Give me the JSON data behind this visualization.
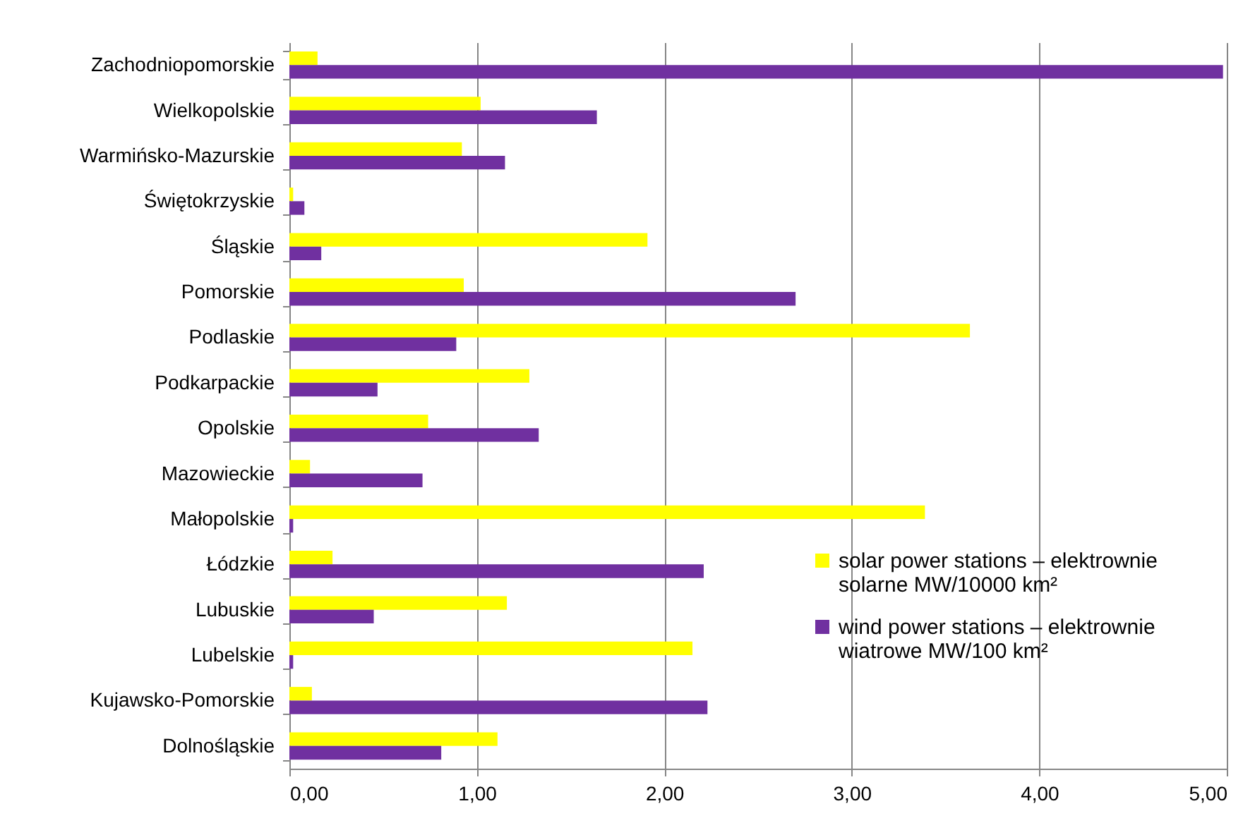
{
  "chart_data": {
    "type": "bar",
    "orientation": "horizontal",
    "categories": [
      "Zachodniopomorskie",
      "Wielkopolskie",
      "Warmińsko-Mazurskie",
      "Świętokrzyskie",
      "Śląskie",
      "Pomorskie",
      "Podlaskie",
      "Podkarpackie",
      "Opolskie",
      "Mazowieckie",
      "Małopolskie",
      "Łódzkie",
      "Lubuskie",
      "Lubelskie",
      "Kujawsko-Pomorskie",
      "Dolnośląskie"
    ],
    "series": [
      {
        "name": "solar power stations – elektrownie solarne MW/10000 km²",
        "color": "#ffff00",
        "values": [
          0.15,
          1.02,
          0.92,
          0.02,
          1.91,
          0.93,
          3.63,
          1.28,
          0.74,
          0.11,
          3.39,
          0.23,
          1.16,
          2.15,
          0.12,
          1.11
        ]
      },
      {
        "name": "wind power stations – elektrownie wiatrowe MW/100 km²",
        "color": "#7030a0",
        "values": [
          4.98,
          1.64,
          1.15,
          0.08,
          0.17,
          2.7,
          0.89,
          0.47,
          1.33,
          0.71,
          0.02,
          2.21,
          0.45,
          0.02,
          2.23,
          0.81
        ]
      }
    ],
    "xlim": [
      0,
      5
    ],
    "xticks": [
      {
        "value": 0,
        "label": "0,00"
      },
      {
        "value": 1,
        "label": "1,00"
      },
      {
        "value": 2,
        "label": "2,00"
      },
      {
        "value": 3,
        "label": "3,00"
      },
      {
        "value": 4,
        "label": "4,00"
      },
      {
        "value": 5,
        "label": "5,00"
      }
    ],
    "grid": "x",
    "legend": "bottom right"
  }
}
